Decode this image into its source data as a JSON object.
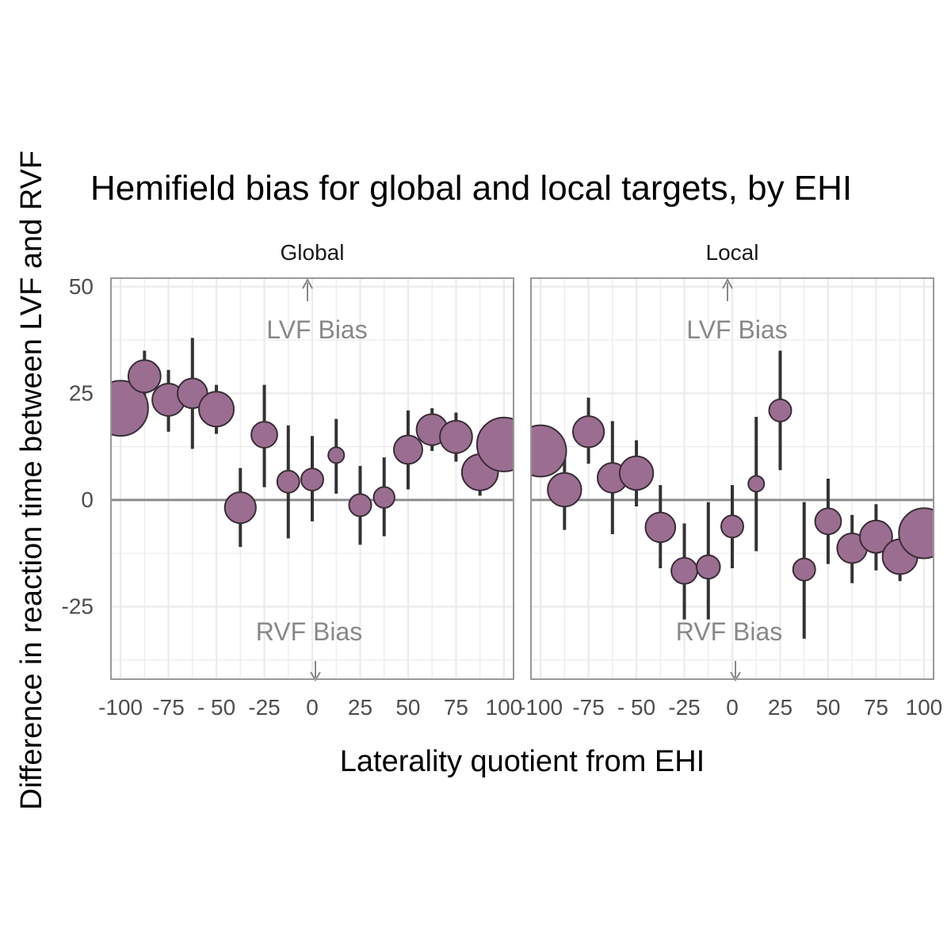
{
  "chart_data": {
    "type": "scatter",
    "title": "Hemifield bias for global and local targets, by EHI",
    "xlabel": "Laterality quotient from EHI",
    "ylabel": "Difference in reaction time between LVF and RVF",
    "xlim": [
      -105,
      105
    ],
    "ylim": [
      -42,
      52
    ],
    "x_ticks": [
      -100,
      -75,
      -50,
      -25,
      0,
      25,
      50,
      75,
      100
    ],
    "x_tick_labels": [
      "-100",
      "-75",
      "- 50",
      "-25",
      "0",
      "25",
      "50",
      "75",
      "100"
    ],
    "y_ticks": [
      50,
      25,
      0,
      -25
    ],
    "y_tick_labels": [
      "50",
      "25",
      "0",
      "-25"
    ],
    "grid": true,
    "colors": {
      "point_fill": "#9b6e91",
      "point_stroke": "#3a2d37",
      "errorbar": "#333333",
      "annotation": "#888888",
      "zero_line": "#8c8c8c",
      "panel_border": "#999999",
      "grid": "#ebebeb"
    },
    "panels": [
      {
        "name": "Global",
        "annotations": {
          "top": "LVF Bias",
          "bottom": "RVF Bias"
        },
        "points": [
          {
            "x": -100,
            "y": 21.5,
            "lower": 21.5,
            "upper": 21.5,
            "size": 3.6
          },
          {
            "x": -87.5,
            "y": 29,
            "lower": 23,
            "upper": 35,
            "size": 1.8
          },
          {
            "x": -75,
            "y": 23.5,
            "lower": 16,
            "upper": 30.5,
            "size": 1.8
          },
          {
            "x": -62.5,
            "y": 25,
            "lower": 12,
            "upper": 38,
            "size": 1.6
          },
          {
            "x": -50,
            "y": 21.3,
            "lower": 15.5,
            "upper": 27,
            "size": 2.0
          },
          {
            "x": -37.5,
            "y": -1.8,
            "lower": -11,
            "upper": 7.5,
            "size": 1.7
          },
          {
            "x": -25,
            "y": 15.3,
            "lower": 3,
            "upper": 27,
            "size": 1.3
          },
          {
            "x": -12.5,
            "y": 4.3,
            "lower": -9,
            "upper": 17.5,
            "size": 1.0
          },
          {
            "x": 0,
            "y": 4.8,
            "lower": -5,
            "upper": 15,
            "size": 1.0
          },
          {
            "x": 12.5,
            "y": 10.5,
            "lower": 1.5,
            "upper": 19,
            "size": 0.5
          },
          {
            "x": 25,
            "y": -1.2,
            "lower": -10.5,
            "upper": 8,
            "size": 1.0
          },
          {
            "x": 37.5,
            "y": 0.6,
            "lower": -8.5,
            "upper": 10,
            "size": 0.9
          },
          {
            "x": 50,
            "y": 11.8,
            "lower": 2.5,
            "upper": 21,
            "size": 1.5
          },
          {
            "x": 62.5,
            "y": 16.5,
            "lower": 11.5,
            "upper": 21.5,
            "size": 1.7
          },
          {
            "x": 75,
            "y": 14.8,
            "lower": 9,
            "upper": 20.5,
            "size": 1.8
          },
          {
            "x": 87.5,
            "y": 6.5,
            "lower": 1,
            "upper": 12,
            "size": 2.1
          },
          {
            "x": 100,
            "y": 13,
            "lower": 13,
            "upper": 13,
            "size": 3.5
          }
        ]
      },
      {
        "name": "Local",
        "annotations": {
          "top": "LVF Bias",
          "bottom": "RVF Bias"
        },
        "points": [
          {
            "x": -100,
            "y": 11.5,
            "lower": 6.5,
            "upper": 17,
            "size": 3.3
          },
          {
            "x": -87.5,
            "y": 2.4,
            "lower": -7,
            "upper": 12,
            "size": 1.9
          },
          {
            "x": -75,
            "y": 16,
            "lower": 8.5,
            "upper": 24,
            "size": 1.7
          },
          {
            "x": -62.5,
            "y": 5.2,
            "lower": -8,
            "upper": 18.5,
            "size": 1.6
          },
          {
            "x": -50,
            "y": 6.3,
            "lower": -1.5,
            "upper": 14,
            "size": 1.9
          },
          {
            "x": -37.5,
            "y": -6.4,
            "lower": -16,
            "upper": 3.5,
            "size": 1.6
          },
          {
            "x": -25,
            "y": -16.6,
            "lower": -28,
            "upper": -5.5,
            "size": 1.3
          },
          {
            "x": -12.5,
            "y": -15.7,
            "lower": -28,
            "upper": -0.5,
            "size": 1.1
          },
          {
            "x": 0,
            "y": -6.2,
            "lower": -16,
            "upper": 3.5,
            "size": 1.0
          },
          {
            "x": 12.5,
            "y": 3.8,
            "lower": -12,
            "upper": 19.5,
            "size": 0.5
          },
          {
            "x": 25,
            "y": 21,
            "lower": 7,
            "upper": 35,
            "size": 1.0
          },
          {
            "x": 37.5,
            "y": -16.3,
            "lower": -32.5,
            "upper": -0.5,
            "size": 1.0
          },
          {
            "x": 50,
            "y": -5,
            "lower": -15,
            "upper": 5,
            "size": 1.3
          },
          {
            "x": 62.5,
            "y": -11.3,
            "lower": -19.5,
            "upper": -3.5,
            "size": 1.6
          },
          {
            "x": 75,
            "y": -8.6,
            "lower": -16.5,
            "upper": -1,
            "size": 1.8
          },
          {
            "x": 87.5,
            "y": -13.3,
            "lower": -19,
            "upper": -8,
            "size": 2.0
          },
          {
            "x": 100,
            "y": -7.8,
            "lower": -7.8,
            "upper": -7.8,
            "size": 3.2
          }
        ]
      }
    ]
  }
}
